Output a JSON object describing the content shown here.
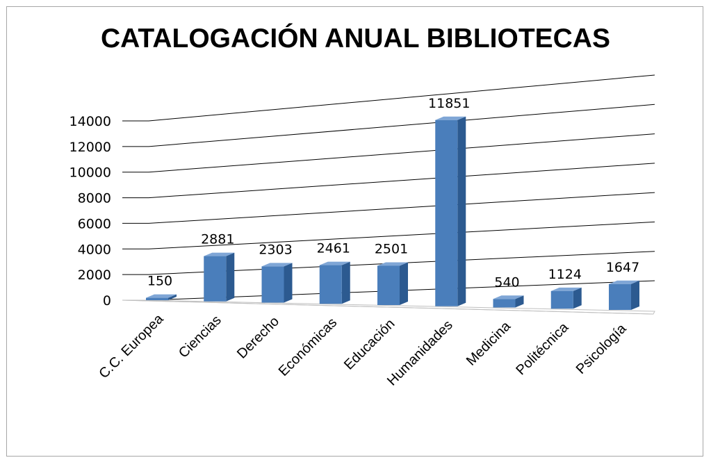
{
  "chart_data": {
    "type": "bar",
    "title": "CATALOGACIÓN ANUAL BIBLIOTECAS",
    "categories": [
      "C.C. Europea",
      "Ciencias",
      "Derecho",
      "Económicas",
      "Educación",
      "Humanidades",
      "Medicina",
      "Politécnica",
      "Psicología"
    ],
    "values": [
      150,
      2881,
      2303,
      2461,
      2501,
      11851,
      540,
      1124,
      1647
    ],
    "data_labels": [
      "150",
      "2881",
      "2303",
      "2461",
      "2501",
      "11851",
      "540",
      "1124",
      "1647"
    ],
    "ylim": [
      0,
      14000
    ],
    "yticks": [
      0,
      2000,
      4000,
      6000,
      8000,
      10000,
      12000,
      14000
    ],
    "ytick_labels": [
      "0",
      "2000",
      "4000",
      "6000",
      "8000",
      "10000",
      "12000",
      "14000"
    ],
    "grid": true,
    "legend": "none",
    "colors": {
      "bar_front": "#4a7ebb",
      "bar_side": "#2c5a90",
      "bar_top": "#7fa6d6",
      "grid": "#000000"
    }
  }
}
